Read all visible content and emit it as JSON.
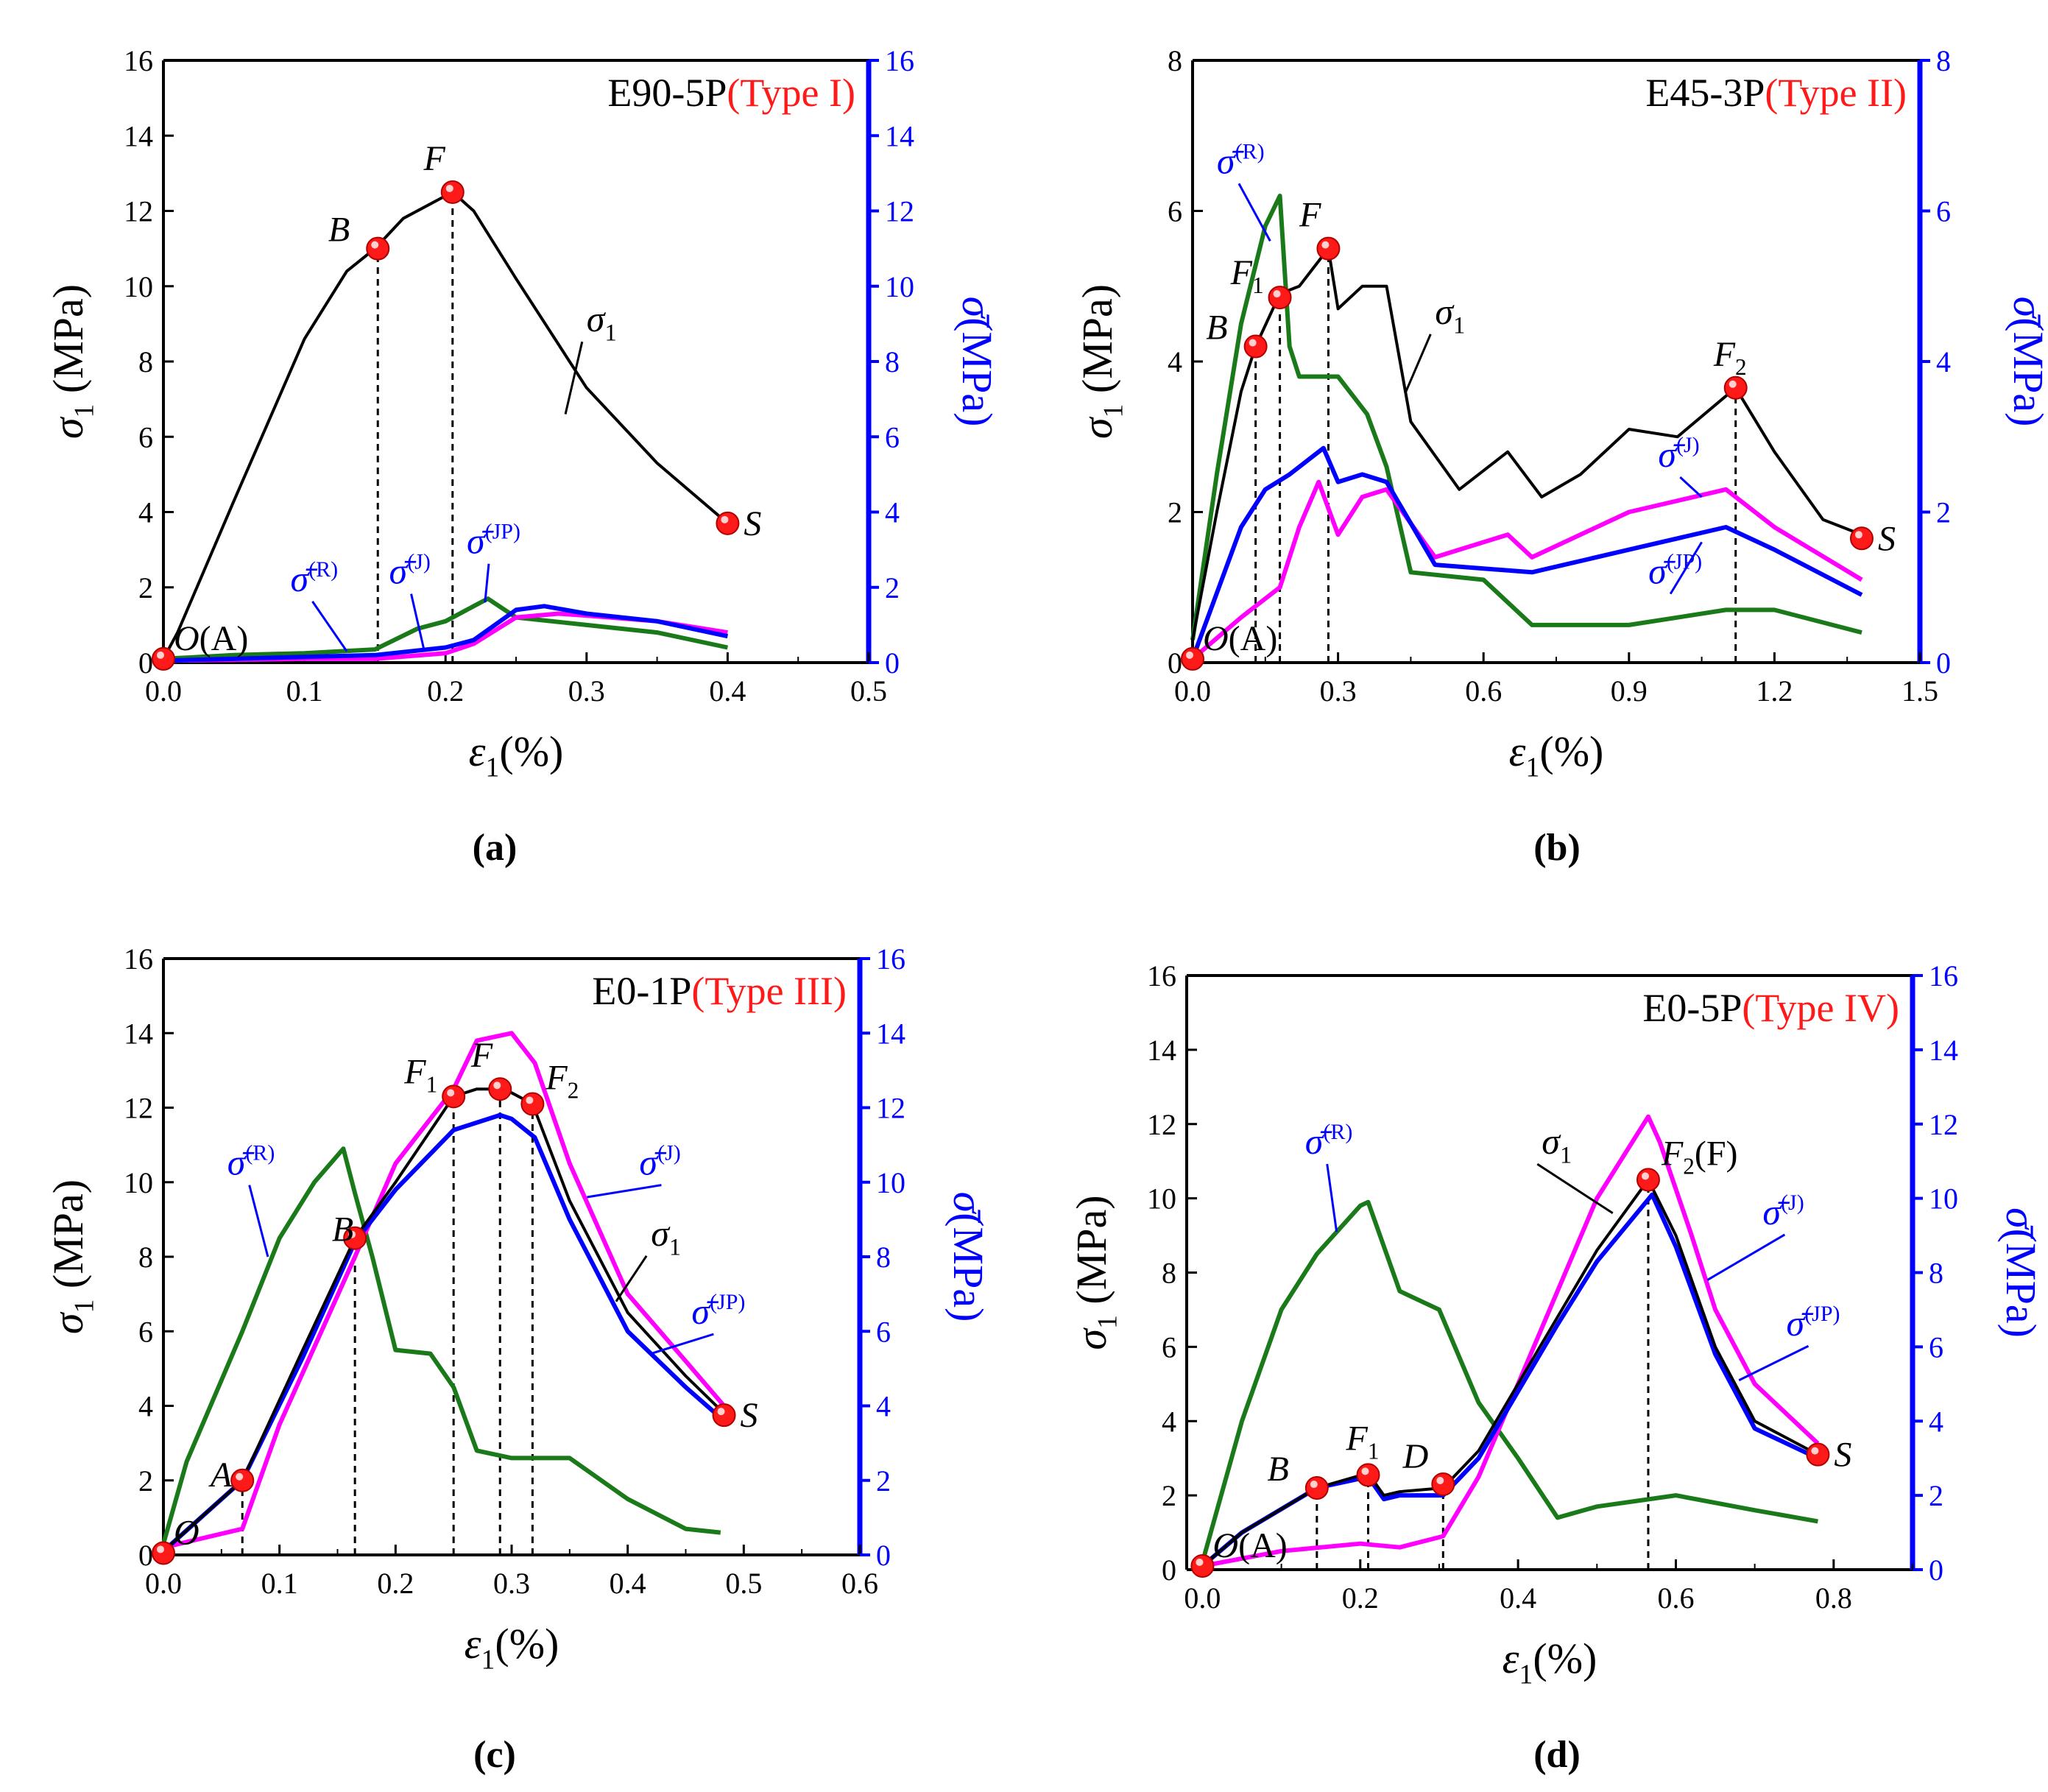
{
  "figure": {
    "colors": {
      "sigma1": "#000000",
      "R": "#1a7a1a",
      "J": "#ff00ff",
      "JP": "#0000ff",
      "right_axis": "#0000ff",
      "marker": "#ff1a1a",
      "type_text": "#ff1a1a",
      "dashed": "#000000"
    },
    "axis_text": {
      "y_left": "σ1 (MPa)",
      "y_right": "σ̄ (MPa)",
      "x": "ε1(%)"
    },
    "series_names": [
      "σ1",
      "σ̄(R)",
      "σ̄(J)",
      "σ̄(JP)"
    ]
  },
  "chart_data": [
    {
      "type": "line",
      "panel": "a",
      "caption": "(a)",
      "title_main": "E90-5P",
      "title_type": "(Type I)",
      "xlim": [
        0,
        0.5
      ],
      "xticks": [
        0.0,
        0.1,
        0.2,
        0.3,
        0.4,
        0.5
      ],
      "xtick_labels": [
        "0.0",
        "0.1",
        "0.2",
        "0.3",
        "0.4",
        "0.5"
      ],
      "ylim": [
        0,
        16
      ],
      "yticks": [
        0,
        2,
        4,
        6,
        8,
        10,
        12,
        14,
        16
      ],
      "ytick_labels": [
        "0",
        "2",
        "4",
        "6",
        "8",
        "10",
        "12",
        "14",
        "16"
      ],
      "xlabel": "ε1(%)",
      "ylabel_left": "σ1 (MPa)",
      "ylabel_right": "σ̄(MPa)",
      "series": [
        {
          "key": "sigma1",
          "name": "σ1",
          "x": [
            0,
            0.01,
            0.05,
            0.1,
            0.13,
            0.15,
            0.17,
            0.2,
            0.205,
            0.22,
            0.25,
            0.3,
            0.35,
            0.4
          ],
          "y": [
            0.1,
            0.8,
            4.3,
            8.6,
            10.4,
            11.0,
            11.8,
            12.4,
            12.5,
            12.0,
            10.2,
            7.3,
            5.3,
            3.7
          ]
        },
        {
          "key": "R",
          "name": "σ̄(R)",
          "x": [
            0,
            0.05,
            0.1,
            0.15,
            0.18,
            0.2,
            0.22,
            0.23,
            0.25,
            0.3,
            0.35,
            0.4
          ],
          "y": [
            0.1,
            0.2,
            0.25,
            0.35,
            0.9,
            1.1,
            1.5,
            1.7,
            1.2,
            1.0,
            0.8,
            0.4
          ]
        },
        {
          "key": "J",
          "name": "σ̄(J)",
          "x": [
            0,
            0.1,
            0.15,
            0.2,
            0.22,
            0.25,
            0.28,
            0.3,
            0.35,
            0.4
          ],
          "y": [
            0.05,
            0.1,
            0.1,
            0.25,
            0.5,
            1.2,
            1.3,
            1.25,
            1.1,
            0.8
          ]
        },
        {
          "key": "JP",
          "name": "σ̄(JP)",
          "x": [
            0,
            0.1,
            0.15,
            0.2,
            0.22,
            0.25,
            0.27,
            0.3,
            0.35,
            0.4
          ],
          "y": [
            0.05,
            0.15,
            0.2,
            0.4,
            0.6,
            1.4,
            1.5,
            1.3,
            1.1,
            0.7
          ]
        }
      ],
      "points": [
        {
          "label": "O(A)",
          "x": 0.0,
          "y": 0.1
        },
        {
          "label": "B",
          "x": 0.152,
          "y": 11.0
        },
        {
          "label": "F",
          "x": 0.205,
          "y": 12.5
        },
        {
          "label": "S",
          "x": 0.4,
          "y": 3.7
        }
      ],
      "dashed_x": [
        0.152,
        0.205
      ],
      "annotations": [
        {
          "text": "σ1",
          "x": 0.3,
          "y": 8.8,
          "to_x": 0.285,
          "to_y": 6.6
        },
        {
          "text": "σ̄(R)",
          "x": 0.09,
          "y": 1.9,
          "to_x": 0.13,
          "to_y": 0.3
        },
        {
          "text": "σ̄(J)",
          "x": 0.16,
          "y": 2.1,
          "to_x": 0.185,
          "to_y": 0.3
        },
        {
          "text": "σ̄(JP)",
          "x": 0.215,
          "y": 2.9,
          "to_x": 0.228,
          "to_y": 1.6
        }
      ]
    },
    {
      "type": "line",
      "panel": "b",
      "caption": "(b)",
      "title_main": "E45-3P",
      "title_type": "(Type II)",
      "xlim": [
        0,
        1.5
      ],
      "xticks": [
        0.0,
        0.3,
        0.6,
        0.9,
        1.2,
        1.5
      ],
      "xtick_labels": [
        "0.0",
        "0.3",
        "0.6",
        "0.9",
        "1.2",
        "1.5"
      ],
      "ylim": [
        0,
        8
      ],
      "yticks": [
        0,
        2,
        4,
        6,
        8
      ],
      "ytick_labels": [
        "0",
        "2",
        "4",
        "6",
        "8"
      ],
      "xlabel": "ε1(%)",
      "ylabel_left": "σ1 (MPa)",
      "ylabel_right": "σ̄(MPa)",
      "series": [
        {
          "key": "sigma1",
          "name": "σ1",
          "x": [
            0,
            0.05,
            0.1,
            0.13,
            0.18,
            0.22,
            0.28,
            0.3,
            0.35,
            0.4,
            0.45,
            0.55,
            0.65,
            0.72,
            0.8,
            0.9,
            1.0,
            1.12,
            1.2,
            1.3,
            1.38
          ],
          "y": [
            0.3,
            2.0,
            3.6,
            4.2,
            4.9,
            5.0,
            5.5,
            4.7,
            5.0,
            5.0,
            3.2,
            2.3,
            2.8,
            2.2,
            2.5,
            3.1,
            3.0,
            3.65,
            2.8,
            1.9,
            1.7
          ]
        },
        {
          "key": "R",
          "name": "σ̄(R)",
          "x": [
            0,
            0.05,
            0.1,
            0.15,
            0.18,
            0.2,
            0.22,
            0.3,
            0.36,
            0.4,
            0.45,
            0.6,
            0.7,
            0.9,
            1.1,
            1.2,
            1.38
          ],
          "y": [
            0.3,
            2.5,
            4.5,
            5.8,
            6.2,
            4.2,
            3.8,
            3.8,
            3.3,
            2.6,
            1.2,
            1.1,
            0.5,
            0.5,
            0.7,
            0.7,
            0.4
          ]
        },
        {
          "key": "J",
          "name": "σ̄(J)",
          "x": [
            0,
            0.1,
            0.18,
            0.22,
            0.26,
            0.3,
            0.35,
            0.4,
            0.5,
            0.65,
            0.7,
            0.9,
            1.1,
            1.2,
            1.38
          ],
          "y": [
            0.05,
            0.6,
            1.0,
            1.8,
            2.4,
            1.7,
            2.2,
            2.3,
            1.4,
            1.7,
            1.4,
            2.0,
            2.3,
            1.8,
            1.1
          ]
        },
        {
          "key": "JP",
          "name": "σ̄(JP)",
          "x": [
            0,
            0.1,
            0.15,
            0.2,
            0.27,
            0.3,
            0.35,
            0.4,
            0.5,
            0.7,
            0.9,
            1.1,
            1.2,
            1.38
          ],
          "y": [
            0.05,
            1.8,
            2.3,
            2.5,
            2.85,
            2.4,
            2.5,
            2.4,
            1.3,
            1.2,
            1.5,
            1.8,
            1.5,
            0.9
          ]
        }
      ],
      "points": [
        {
          "label": "O(A)",
          "x": 0.0,
          "y": 0.05
        },
        {
          "label": "B",
          "x": 0.13,
          "y": 4.2
        },
        {
          "label": "F1",
          "x": 0.18,
          "y": 4.85
        },
        {
          "label": "F",
          "x": 0.28,
          "y": 5.5
        },
        {
          "label": "F2",
          "x": 1.12,
          "y": 3.65
        },
        {
          "label": "S",
          "x": 1.38,
          "y": 1.65
        }
      ],
      "dashed_x": [
        0.13,
        0.18,
        0.28,
        1.12
      ],
      "annotations": [
        {
          "text": "σ1",
          "x": 0.5,
          "y": 4.5,
          "to_x": 0.44,
          "to_y": 3.6
        },
        {
          "text": "σ̄(R)",
          "x": 0.05,
          "y": 6.5,
          "to_x": 0.16,
          "to_y": 5.6
        },
        {
          "text": "σ̄(J)",
          "x": 0.96,
          "y": 2.6,
          "to_x": 1.05,
          "to_y": 2.2
        },
        {
          "text": "σ̄(JP)",
          "x": 0.94,
          "y": 1.05,
          "to_x": 1.05,
          "to_y": 1.6
        }
      ]
    },
    {
      "type": "line",
      "panel": "c",
      "caption": "(c)",
      "title_main": "E0-1P",
      "title_type": "(Type III)",
      "xlim": [
        0,
        0.6
      ],
      "xticks": [
        0.0,
        0.1,
        0.2,
        0.3,
        0.4,
        0.5,
        0.6
      ],
      "xtick_labels": [
        "0.0",
        "0.1",
        "0.2",
        "0.3",
        "0.4",
        "0.5",
        "0.6"
      ],
      "ylim": [
        0,
        16
      ],
      "yticks": [
        0,
        2,
        4,
        6,
        8,
        10,
        12,
        14,
        16
      ],
      "ytick_labels": [
        "0",
        "2",
        "4",
        "6",
        "8",
        "10",
        "12",
        "14",
        "16"
      ],
      "xlabel": "ε1(%)",
      "ylabel_left": "σ1 (MPa)",
      "ylabel_right": "σ̄(MPa)",
      "series": [
        {
          "key": "sigma1",
          "name": "σ1",
          "x": [
            0,
            0.068,
            0.12,
            0.165,
            0.2,
            0.25,
            0.27,
            0.29,
            0.3,
            0.318,
            0.35,
            0.4,
            0.45,
            0.483
          ],
          "y": [
            0.1,
            2.0,
            5.5,
            8.5,
            10.0,
            12.3,
            12.5,
            12.5,
            12.4,
            12.1,
            9.5,
            6.5,
            4.8,
            3.8
          ]
        },
        {
          "key": "R",
          "name": "σ̄(R)",
          "x": [
            0,
            0.02,
            0.068,
            0.1,
            0.13,
            0.155,
            0.165,
            0.18,
            0.2,
            0.23,
            0.25,
            0.27,
            0.3,
            0.35,
            0.4,
            0.45,
            0.48
          ],
          "y": [
            0.3,
            2.5,
            6.0,
            8.5,
            10.0,
            10.9,
            9.7,
            8.0,
            5.5,
            5.4,
            4.5,
            2.8,
            2.6,
            2.6,
            1.5,
            0.7,
            0.6
          ]
        },
        {
          "key": "J",
          "name": "σ̄(J)",
          "x": [
            0,
            0.068,
            0.1,
            0.165,
            0.2,
            0.25,
            0.27,
            0.3,
            0.32,
            0.35,
            0.4,
            0.45,
            0.483
          ],
          "y": [
            0.2,
            0.7,
            3.5,
            8.0,
            10.5,
            12.5,
            13.8,
            14.0,
            13.2,
            10.5,
            7.0,
            5.2,
            4.0
          ]
        },
        {
          "key": "JP",
          "name": "σ̄(JP)",
          "x": [
            0,
            0.068,
            0.12,
            0.165,
            0.2,
            0.25,
            0.29,
            0.3,
            0.32,
            0.35,
            0.4,
            0.45,
            0.483
          ],
          "y": [
            0.1,
            2.0,
            5.3,
            8.4,
            9.8,
            11.4,
            11.8,
            11.7,
            11.2,
            9.0,
            6.0,
            4.5,
            3.6
          ]
        }
      ],
      "points": [
        {
          "label": "O",
          "x": 0.0,
          "y": 0.05
        },
        {
          "label": "A",
          "x": 0.068,
          "y": 2.0
        },
        {
          "label": "B",
          "x": 0.165,
          "y": 8.5
        },
        {
          "label": "F1",
          "x": 0.25,
          "y": 12.3
        },
        {
          "label": "F",
          "x": 0.29,
          "y": 12.5
        },
        {
          "label": "F2",
          "x": 0.318,
          "y": 12.1
        },
        {
          "label": "S",
          "x": 0.483,
          "y": 3.75
        }
      ],
      "dashed_x": [
        0.068,
        0.165,
        0.25,
        0.29,
        0.318
      ],
      "annotations": [
        {
          "text": "σ1",
          "x": 0.42,
          "y": 8.3,
          "to_x": 0.39,
          "to_y": 6.8
        },
        {
          "text": "σ̄(R)",
          "x": 0.055,
          "y": 10.2,
          "to_x": 0.09,
          "to_y": 8.0
        },
        {
          "text": "σ̄(J)",
          "x": 0.41,
          "y": 10.2,
          "to_x": 0.365,
          "to_y": 9.6
        },
        {
          "text": "σ̄(JP)",
          "x": 0.455,
          "y": 6.2,
          "to_x": 0.42,
          "to_y": 5.4
        }
      ]
    },
    {
      "type": "line",
      "panel": "d",
      "caption": "(d)",
      "title_main": "E0-5P",
      "title_type": "(Type IV)",
      "xlim": [
        -0.02,
        0.9
      ],
      "xticks": [
        0.0,
        0.2,
        0.4,
        0.6,
        0.8
      ],
      "xtick_labels": [
        "0.0",
        "0.2",
        "0.4",
        "0.6",
        "0.8"
      ],
      "ylim": [
        0,
        16
      ],
      "yticks": [
        0,
        2,
        4,
        6,
        8,
        10,
        12,
        14,
        16
      ],
      "ytick_labels": [
        "0",
        "2",
        "4",
        "6",
        "8",
        "10",
        "12",
        "14",
        "16"
      ],
      "xlabel": "ε1(%)",
      "ylabel_left": "σ1 (MPa)",
      "ylabel_right": "σ̄(MPa)",
      "series": [
        {
          "key": "sigma1",
          "name": "σ1",
          "x": [
            0,
            0.05,
            0.145,
            0.21,
            0.23,
            0.25,
            0.305,
            0.35,
            0.4,
            0.45,
            0.5,
            0.565,
            0.6,
            0.65,
            0.7,
            0.78
          ],
          "y": [
            0.1,
            1.0,
            2.2,
            2.6,
            2.0,
            2.1,
            2.2,
            3.2,
            5.0,
            6.8,
            8.6,
            10.5,
            9.0,
            6.0,
            4.0,
            3.1
          ]
        },
        {
          "key": "R",
          "name": "σ̄(R)",
          "x": [
            0,
            0.05,
            0.1,
            0.145,
            0.2,
            0.21,
            0.25,
            0.3,
            0.32,
            0.35,
            0.4,
            0.45,
            0.5,
            0.6,
            0.7,
            0.78
          ],
          "y": [
            0.2,
            4.0,
            7.0,
            8.5,
            9.8,
            9.9,
            7.5,
            7.0,
            6.0,
            4.5,
            3.0,
            1.4,
            1.7,
            2.0,
            1.6,
            1.3
          ]
        },
        {
          "key": "J",
          "name": "σ̄(J)",
          "x": [
            0,
            0.1,
            0.2,
            0.25,
            0.305,
            0.35,
            0.4,
            0.45,
            0.5,
            0.565,
            0.58,
            0.62,
            0.65,
            0.7,
            0.78
          ],
          "y": [
            0.1,
            0.5,
            0.7,
            0.6,
            0.9,
            2.5,
            5.0,
            7.5,
            10.0,
            12.2,
            11.5,
            9.0,
            7.0,
            5.0,
            3.4
          ]
        },
        {
          "key": "JP",
          "name": "σ̄(JP)",
          "x": [
            0,
            0.05,
            0.145,
            0.21,
            0.23,
            0.25,
            0.305,
            0.35,
            0.4,
            0.45,
            0.5,
            0.57,
            0.6,
            0.65,
            0.7,
            0.78
          ],
          "y": [
            0.1,
            1.0,
            2.2,
            2.5,
            1.9,
            2.0,
            2.0,
            3.0,
            4.8,
            6.6,
            8.3,
            10.1,
            8.7,
            5.8,
            3.8,
            3.0
          ]
        }
      ],
      "points": [
        {
          "label": "O(A)",
          "x": 0.0,
          "y": 0.1
        },
        {
          "label": "B",
          "x": 0.145,
          "y": 2.2
        },
        {
          "label": "F1",
          "x": 0.21,
          "y": 2.55
        },
        {
          "label": "D",
          "x": 0.305,
          "y": 2.3
        },
        {
          "label": "F2(F)",
          "x": 0.565,
          "y": 10.5
        },
        {
          "label": "S",
          "x": 0.78,
          "y": 3.1
        }
      ],
      "dashed_x": [
        0.145,
        0.21,
        0.305,
        0.565
      ],
      "annotations": [
        {
          "text": "σ1",
          "x": 0.43,
          "y": 11.2,
          "to_x": 0.52,
          "to_y": 9.6
        },
        {
          "text": "σ̄(R)",
          "x": 0.13,
          "y": 11.2,
          "to_x": 0.17,
          "to_y": 9.1
        },
        {
          "text": "σ̄(J)",
          "x": 0.71,
          "y": 9.3,
          "to_x": 0.64,
          "to_y": 7.8
        },
        {
          "text": "σ̄(JP)",
          "x": 0.74,
          "y": 6.3,
          "to_x": 0.68,
          "to_y": 5.1
        }
      ]
    }
  ]
}
